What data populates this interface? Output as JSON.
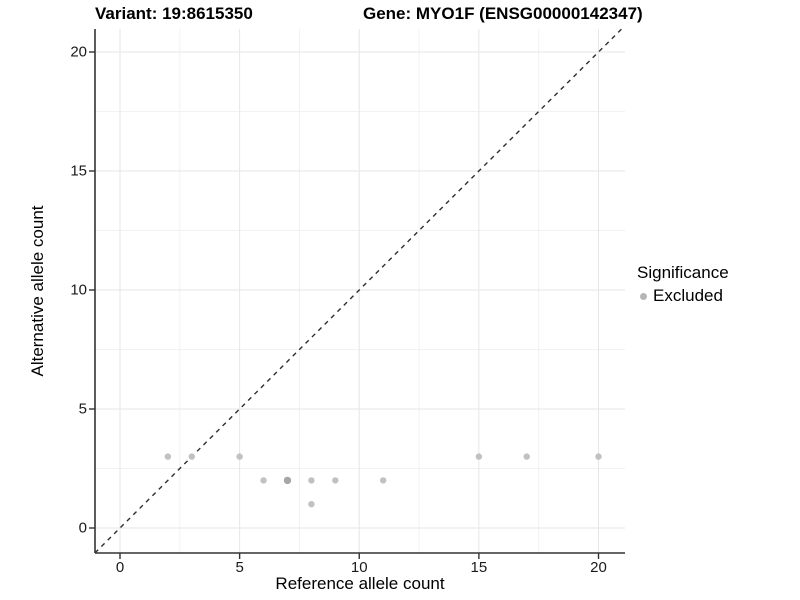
{
  "header": {
    "variant_title": "Variant: 19:8615350",
    "gene_title": "Gene: MYO1F (ENSG00000142347)"
  },
  "chart_data": {
    "type": "scatter",
    "title": "Variant: 19:8615350   Gene: MYO1F (ENSG00000142347)",
    "xlabel": "Reference allele count",
    "ylabel": "Alternative allele count",
    "xlim": [
      -1.05,
      21.1
    ],
    "ylim": [
      -1.05,
      21.0
    ],
    "x_ticks": [
      0,
      5,
      10,
      15,
      20
    ],
    "y_ticks": [
      0,
      5,
      10,
      15,
      20
    ],
    "x_minor_ticks": [
      2.5,
      7.5,
      12.5,
      17.5
    ],
    "y_minor_ticks": [
      2.5,
      7.5,
      12.5,
      17.5
    ],
    "grid": "major-and-minor",
    "identity_line": {
      "slope": 1,
      "intercept": 0,
      "style": "dashed"
    },
    "series": [
      {
        "name": "Excluded",
        "points": [
          {
            "x": 2,
            "y": 3
          },
          {
            "x": 3,
            "y": 3
          },
          {
            "x": 5,
            "y": 3
          },
          {
            "x": 6,
            "y": 2
          },
          {
            "x": 7,
            "y": 2,
            "overplotted": true
          },
          {
            "x": 8,
            "y": 2
          },
          {
            "x": 9,
            "y": 2
          },
          {
            "x": 11,
            "y": 2
          },
          {
            "x": 8,
            "y": 1
          },
          {
            "x": 15,
            "y": 3
          },
          {
            "x": 17,
            "y": 3
          },
          {
            "x": 20,
            "y": 3
          }
        ]
      }
    ],
    "legend": {
      "position": "right",
      "title": "Significance",
      "items": [
        {
          "label": "Excluded",
          "color": "#b5b5b5"
        }
      ]
    }
  },
  "colors": {
    "point": "#c1c1c1",
    "point_overplotted": "#a6a6a6",
    "grid_major": "#e6e6e6",
    "grid_minor": "#f2f2f2",
    "axis_line": "#333333",
    "dash_line": "#2e2e2e",
    "background": "#ffffff"
  }
}
